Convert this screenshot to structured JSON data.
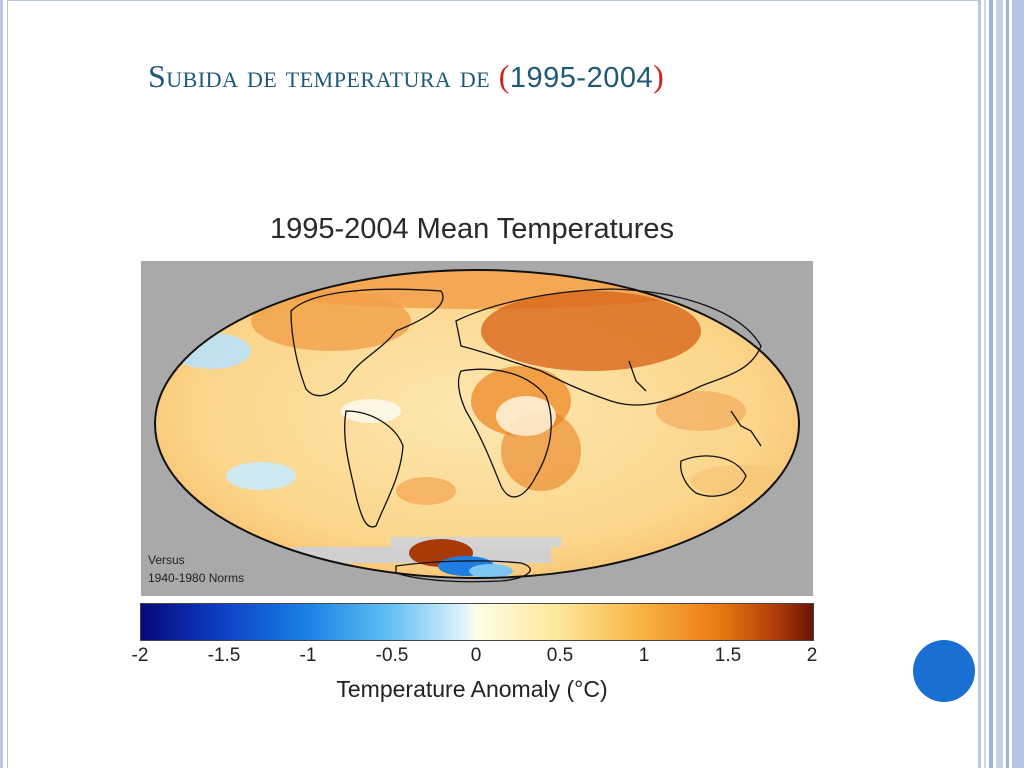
{
  "slide": {
    "title_prefix": "Subida de temperatura de ",
    "title_paren_open": "(",
    "title_years": "1995-2004",
    "title_paren_close": ")"
  },
  "figure": {
    "title": "1995-2004 Mean Temperatures",
    "note_line1": "Versus",
    "note_line2": "1940-1980 Norms",
    "colorbar_ticks": [
      "-2",
      "-1.5",
      "-1",
      "-0.5",
      "0",
      "0.5",
      "1",
      "1.5",
      "2"
    ],
    "colorbar_label": "Temperature Anomaly (°C)"
  },
  "colors": {
    "title": "#1e5a78",
    "paren": "#d21e1e",
    "accent_dot": "#1a6fd2",
    "frame": "#b7c6e2"
  }
}
